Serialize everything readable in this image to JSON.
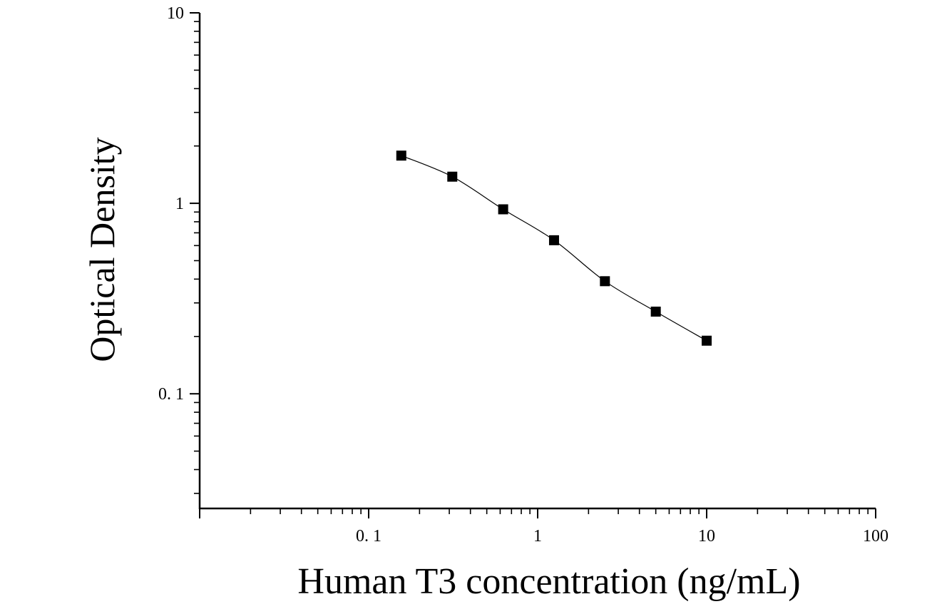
{
  "chart_data": {
    "type": "scatter",
    "title": "",
    "xlabel": "Human T3 concentration (ng/mL)",
    "ylabel": "Optical Density",
    "x_scale": "log",
    "y_scale": "log",
    "xlim": [
      0.01,
      100
    ],
    "ylim": [
      0.025,
      10
    ],
    "x_tick_labels": [
      {
        "value": 0.1,
        "label": "0. 1"
      },
      {
        "value": 1,
        "label": "1"
      },
      {
        "value": 10,
        "label": "10"
      },
      {
        "value": 100,
        "label": "100"
      }
    ],
    "y_tick_labels": [
      {
        "value": 10,
        "label": "10"
      },
      {
        "value": 1,
        "label": "1"
      },
      {
        "value": 0.1,
        "label": "0. 1"
      }
    ],
    "grid": false,
    "legend": "none",
    "marker": "square",
    "fit_line": "smooth curve through points",
    "color": "#000000",
    "series": [
      {
        "x": [
          0.156,
          0.3125,
          0.625,
          1.25,
          2.5,
          5,
          10
        ],
        "y": [
          1.78,
          1.38,
          0.93,
          0.64,
          0.39,
          0.27,
          0.19
        ]
      }
    ]
  }
}
